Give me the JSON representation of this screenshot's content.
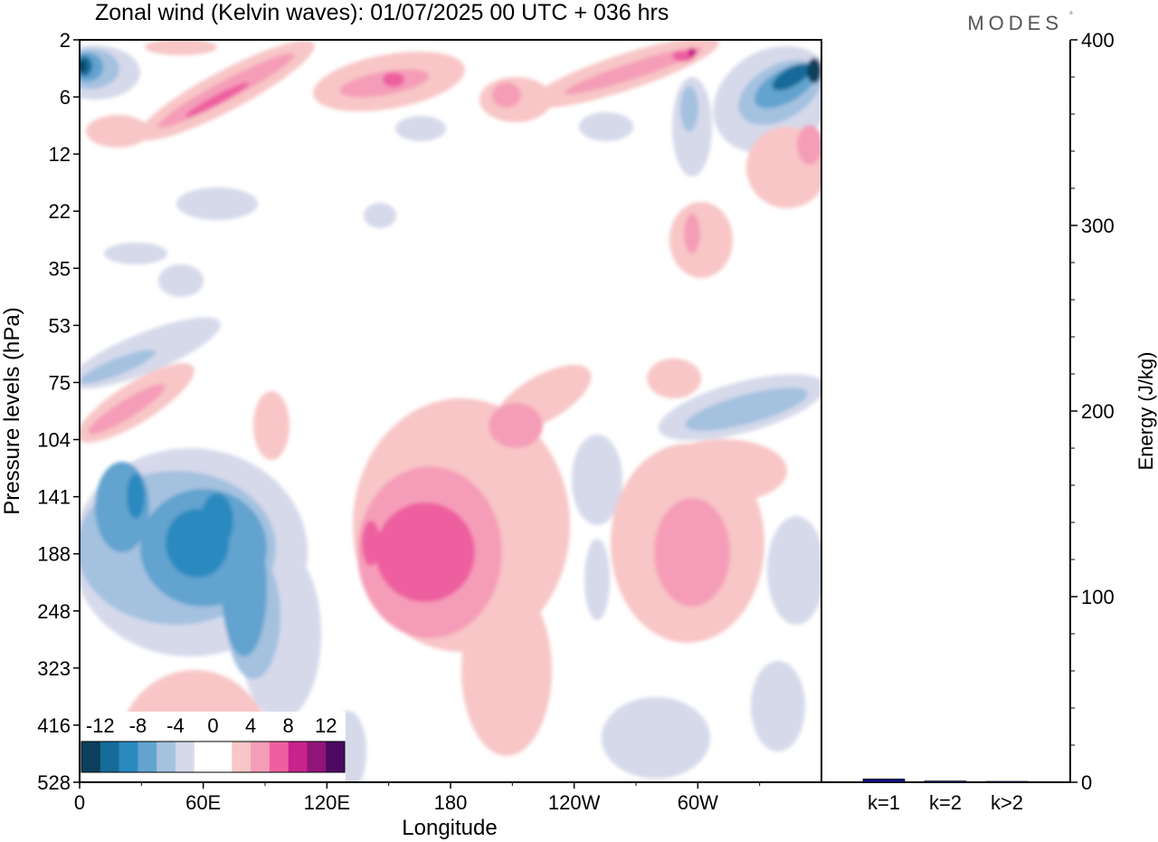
{
  "title": "Zonal wind (Kelvin waves):  01/07/2025  00 UTC  + 036 hrs",
  "brand": {
    "name": "MODES",
    "mark": "°"
  },
  "chart_data": [
    {
      "type": "heatmap",
      "title": "Zonal wind (Kelvin waves):  01/07/2025  00 UTC  + 036 hrs",
      "xlabel": "Longitude",
      "ylabel": "Pressure levels (hPa)",
      "x_ticks": [
        "0",
        "60E",
        "120E",
        "180",
        "120W",
        "60W"
      ],
      "x_tick_degrees": [
        0,
        60,
        120,
        180,
        240,
        300
      ],
      "x_range_degrees": [
        0,
        360
      ],
      "y_ticks": [
        "2",
        "6",
        "12",
        "22",
        "35",
        "53",
        "75",
        "104",
        "141",
        "188",
        "248",
        "323",
        "416",
        "528"
      ],
      "contour_levels": [
        -12,
        -10,
        -8,
        -6,
        -4,
        -2,
        0,
        2,
        4,
        6,
        8,
        10,
        12
      ],
      "colorbar_labels": [
        "-12",
        "-8",
        "-4",
        "0",
        "4",
        "8",
        "12"
      ],
      "colorbar_colors": [
        "#0b3f5c",
        "#156b99",
        "#2a8ac0",
        "#62a3cf",
        "#a4c1e0",
        "#d5d9ea",
        "#ffffff",
        "#ffffff",
        "#f8c6c6",
        "#f59db8",
        "#ee5fa0",
        "#c7238a",
        "#91157a",
        "#4d0a62"
      ],
      "features": [
        {
          "lon_from": 170,
          "lon_to": 225,
          "p_from": 104,
          "p_to": 416,
          "value": 8
        },
        {
          "lon_from": 25,
          "lon_to": 95,
          "p_from": 104,
          "p_to": 323,
          "value": -10
        },
        {
          "lon_from": 270,
          "lon_to": 320,
          "p_from": 141,
          "p_to": 248,
          "value": 6
        },
        {
          "lon_from": 310,
          "lon_to": 360,
          "p_from": 2,
          "p_to": 12,
          "value": -10
        },
        {
          "lon_from": 0,
          "lon_to": 8,
          "p_from": 2,
          "p_to": 6,
          "value": -12
        }
      ]
    },
    {
      "type": "bar",
      "categories": [
        "k=1",
        "k=2",
        "k>2"
      ],
      "values": [
        1.8,
        0.7,
        0.5
      ],
      "ylabel": "Energy (J/kg)",
      "ylim": [
        0,
        400
      ],
      "y_ticks": [
        "0",
        "100",
        "200",
        "300",
        "400"
      ],
      "bar_color": "#0c1282"
    }
  ]
}
